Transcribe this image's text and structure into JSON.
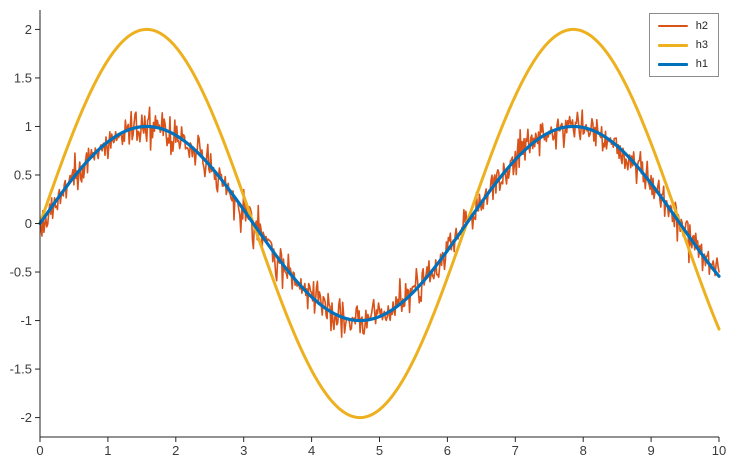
{
  "chart_data": {
    "type": "line",
    "title": "",
    "xlabel": "",
    "ylabel": "",
    "xlim": [
      0,
      10
    ],
    "ylim": [
      -2.2,
      2.2
    ],
    "grid": false,
    "background": "#ffffff",
    "axis_color": "#262626",
    "xticks": {
      "values": [
        0,
        1,
        2,
        3,
        4,
        5,
        6,
        7,
        8,
        9,
        10
      ],
      "labels": [
        "0",
        "1",
        "2",
        "3",
        "4",
        "5",
        "6",
        "7",
        "8",
        "9",
        "10"
      ]
    },
    "yticks": {
      "values": [
        -2,
        -1.5,
        -1,
        -0.5,
        0,
        0.5,
        1,
        1.5,
        2
      ],
      "labels": [
        "-2",
        "-1.5",
        "-1",
        "-0.5",
        "0",
        "0.5",
        "1",
        "1.5",
        "2"
      ]
    },
    "legend": {
      "position": "top-right",
      "entries": [
        {
          "label": "h2",
          "color": "#D95319"
        },
        {
          "label": "h3",
          "color": "#EDB120"
        },
        {
          "label": "h1",
          "color": "#0072BD"
        }
      ]
    },
    "series": [
      {
        "name": "h2",
        "color": "#D95319",
        "function": "sin",
        "amplitude": 1,
        "frequency": 1,
        "phase": 0,
        "noise_sd": 0.09,
        "samples": 701,
        "linewidth": 1.6
      },
      {
        "name": "h3",
        "color": "#EDB120",
        "function": "sin",
        "amplitude": 2,
        "frequency": 1,
        "phase": 0,
        "noise_sd": 0,
        "samples": 400,
        "linewidth": 3
      },
      {
        "name": "h1",
        "color": "#0072BD",
        "function": "sin",
        "amplitude": 1,
        "frequency": 1,
        "phase": 0,
        "noise_sd": 0,
        "samples": 400,
        "linewidth": 3.2
      }
    ]
  }
}
